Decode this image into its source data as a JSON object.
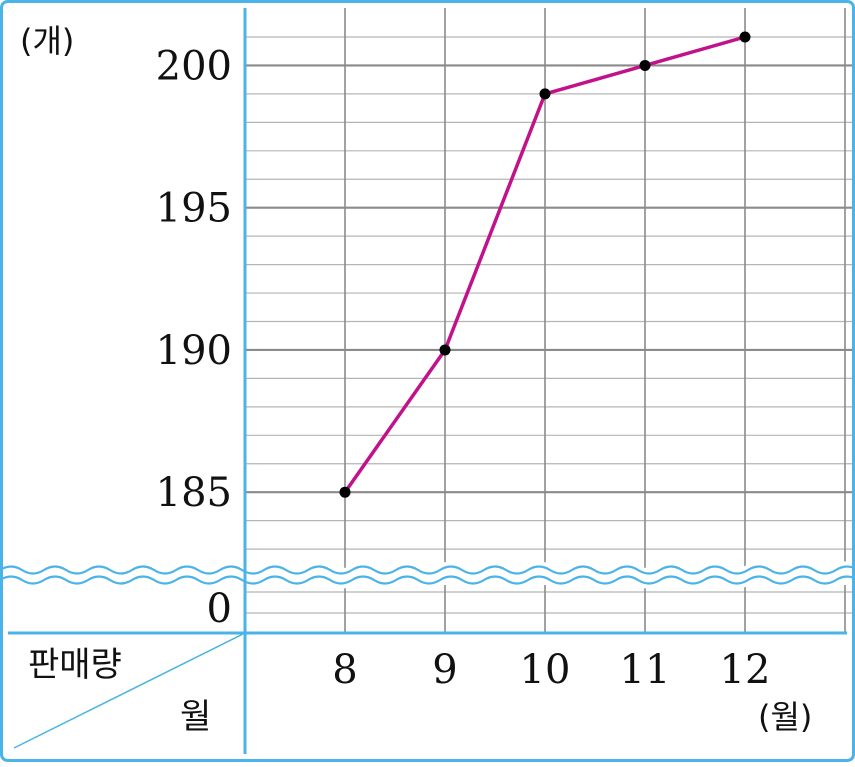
{
  "chart_data": {
    "type": "line",
    "x_unit_label": "(월)",
    "y_unit_label": "(개)",
    "corner_top_label": "판매량",
    "corner_bottom_label": "월",
    "x": [
      "8",
      "9",
      "10",
      "11",
      "12"
    ],
    "y_ticks": [
      "185",
      "190",
      "195",
      "200"
    ],
    "y_zero_label": "0",
    "ylim": [
      182,
      201
    ],
    "axis_break": true,
    "grid": true,
    "series": [
      {
        "values": [
          185,
          190,
          199,
          200,
          201
        ]
      }
    ],
    "colors": {
      "line": "#c2128a",
      "point": "#000000",
      "frame": "#4ab3e8",
      "grid_major": "#8a8a8a",
      "grid_minor": "#b5b5b5",
      "break_line": "#4ab3e8"
    }
  }
}
